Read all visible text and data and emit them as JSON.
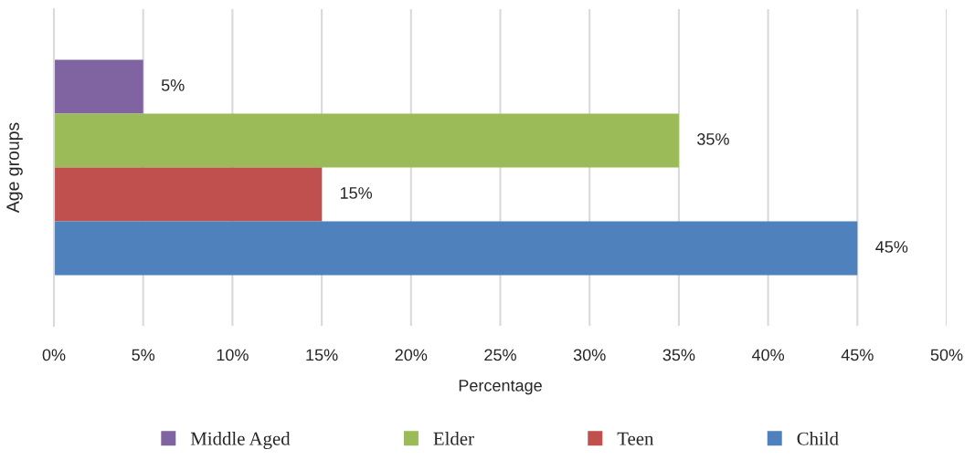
{
  "chart_data": {
    "type": "bar",
    "orientation": "horizontal",
    "categories": [
      null
    ],
    "series": [
      {
        "name": "Middle Aged",
        "color": "#8064a2",
        "values": [
          5
        ],
        "value_labels": [
          "5%"
        ]
      },
      {
        "name": "Elder",
        "color": "#9bbb59",
        "values": [
          35
        ],
        "value_labels": [
          "35%"
        ]
      },
      {
        "name": "Teen",
        "color": "#c0504d",
        "values": [
          15
        ],
        "value_labels": [
          "15%"
        ]
      },
      {
        "name": "Child",
        "color": "#4f81bd",
        "values": [
          45
        ],
        "value_labels": [
          "45%"
        ]
      }
    ],
    "xlabel": "Percentage",
    "ylabel": "Age groups",
    "xlim": [
      0,
      50
    ],
    "xticks": [
      {
        "value": 0,
        "label": "0%"
      },
      {
        "value": 5,
        "label": "5%"
      },
      {
        "value": 10,
        "label": "10%"
      },
      {
        "value": 15,
        "label": "15%"
      },
      {
        "value": 20,
        "label": "20%"
      },
      {
        "value": 25,
        "label": "25%"
      },
      {
        "value": 30,
        "label": "30%"
      },
      {
        "value": 35,
        "label": "35%"
      },
      {
        "value": 40,
        "label": "40%"
      },
      {
        "value": 45,
        "label": "45%"
      },
      {
        "value": 50,
        "label": "50%"
      }
    ],
    "grid": "x",
    "legend": "bottom",
    "tick_labels": "x"
  }
}
